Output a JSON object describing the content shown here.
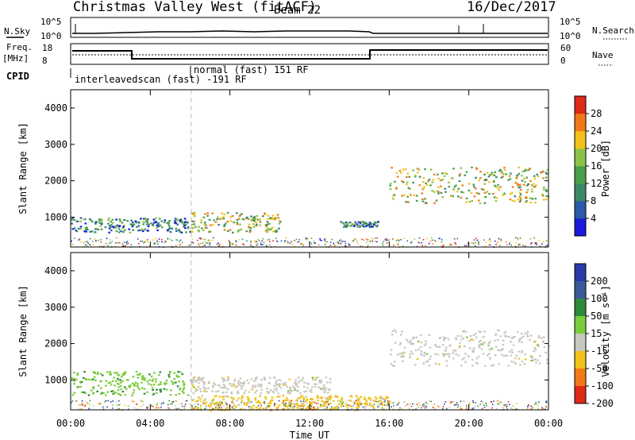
{
  "header": {
    "station": "Christmas Valley West (fitACF)",
    "beam": "Beam 22",
    "date": "16/Dec/2017"
  },
  "strip": {
    "nsky_label": "N.Sky",
    "nsky_ticks": [
      "10^5",
      "10^0"
    ],
    "nsearch_label": "N.Search",
    "nsearch_ticks": [
      "10^5",
      "10^0"
    ],
    "freq_label_1": "Freq.",
    "freq_label_2": "[MHz]",
    "freq_ticks": [
      "18",
      "8"
    ],
    "nave_label": "Nave",
    "nave_ticks": [
      "60",
      "0"
    ],
    "cpid_label": "CPID",
    "cpid_1": "interleavedscan (fast)  -191 RF",
    "cpid_2": "normal (fast) 151 RF"
  },
  "chart_data": [
    {
      "type": "heatmap",
      "title": "",
      "ylabel": "Slant Range [km]",
      "ylim": [
        180,
        4500
      ],
      "yticks": [
        "1000",
        "2000",
        "3000",
        "4000"
      ],
      "colorbar": {
        "label": "Power [dB]",
        "ticks": [
          "4",
          "8",
          "12",
          "16",
          "20",
          "24",
          "28"
        ],
        "colors": [
          "#1a1adc",
          "#2a5aa8",
          "#3a8a6a",
          "#49a04a",
          "#8cc24a",
          "#f2c21a",
          "#f07a18",
          "#e02a18"
        ]
      },
      "regions": [
        {
          "t0": 0.0,
          "t1": 6.0,
          "r0": 600,
          "r1": 1000,
          "level": "medium"
        },
        {
          "t0": 6.0,
          "t1": 10.5,
          "r0": 600,
          "r1": 1150,
          "level": "high"
        },
        {
          "t0": 16.0,
          "t1": 24.0,
          "r0": 1400,
          "r1": 2400,
          "level": "high"
        },
        {
          "t0": 13.5,
          "t1": 15.5,
          "r0": 750,
          "r1": 900,
          "level": "medium"
        }
      ]
    },
    {
      "type": "heatmap",
      "title": "",
      "ylabel": "Slant Range [km]",
      "xlabel": "Time UT",
      "xlim": [
        0,
        24
      ],
      "xticks": [
        "00:00",
        "04:00",
        "08:00",
        "12:00",
        "16:00",
        "20:00",
        "00:00"
      ],
      "ylim": [
        180,
        4500
      ],
      "yticks": [
        "1000",
        "2000",
        "3000",
        "4000"
      ],
      "colorbar": {
        "label": "Velocity [m s⁻¹]",
        "ticks": [
          "200",
          "100",
          "50",
          "15",
          "-15",
          "-50",
          "-100",
          "-200"
        ],
        "colors": [
          "#2a3aa8",
          "#3a5a9a",
          "#2e8a3a",
          "#7acc3a",
          "#c8c8c0",
          "#f2c21a",
          "#f07a18",
          "#e02a18"
        ]
      },
      "regions": [
        {
          "t0": 0.0,
          "t1": 6.0,
          "r0": 600,
          "r1": 1250,
          "velocity": 30
        },
        {
          "t0": 6.0,
          "t1": 13.0,
          "r0": 650,
          "r1": 1100,
          "velocity": 0
        },
        {
          "t0": 6.0,
          "t1": 16.0,
          "r0": 180,
          "r1": 600,
          "velocity": -30
        },
        {
          "t0": 16.0,
          "t1": 24.0,
          "r0": 1400,
          "r1": 2400,
          "velocity": 0
        }
      ]
    }
  ]
}
